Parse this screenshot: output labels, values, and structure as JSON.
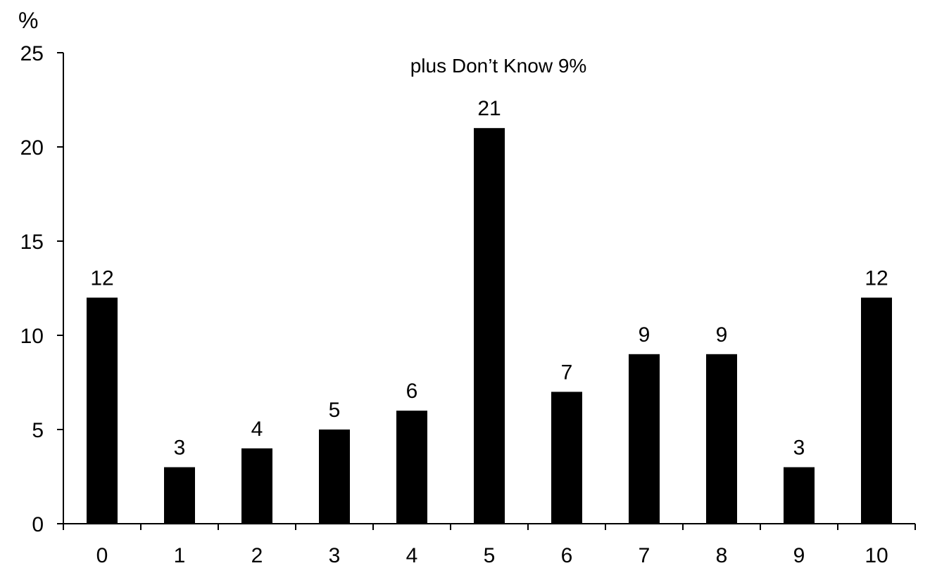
{
  "chart_data": {
    "type": "bar",
    "title": "",
    "xlabel": "",
    "ylabel": "%",
    "annotation": "plus Don’t Know 9%",
    "categories": [
      "0",
      "1",
      "2",
      "3",
      "4",
      "5",
      "6",
      "7",
      "8",
      "9",
      "10"
    ],
    "values": [
      12,
      3,
      4,
      5,
      6,
      21,
      7,
      9,
      9,
      3,
      12
    ],
    "data_labels": [
      "12",
      "3",
      "4",
      "5",
      "6",
      "21",
      "7",
      "9",
      "9",
      "3",
      "12"
    ],
    "ylim": [
      0,
      25
    ],
    "yticks": [
      0,
      5,
      10,
      15,
      20,
      25
    ],
    "ytick_labels": [
      "0",
      "5",
      "10",
      "15",
      "20",
      "25"
    ],
    "grid": false,
    "legend": "none",
    "bar_color": "#000000"
  }
}
